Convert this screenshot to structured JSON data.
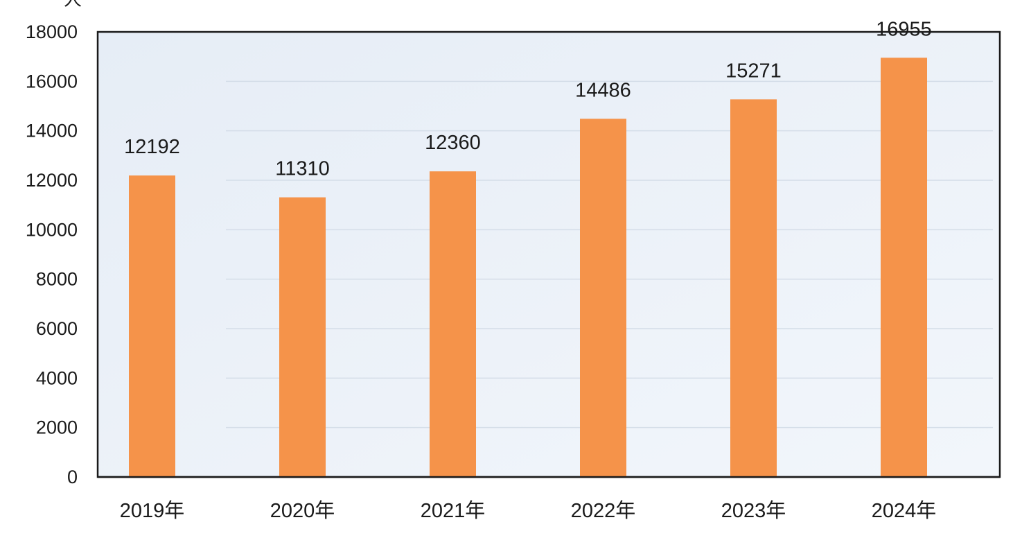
{
  "chart_data": {
    "type": "bar",
    "title": "",
    "unit_label": "人",
    "xlabel": "",
    "ylabel": "",
    "categories": [
      "2019年",
      "2020年",
      "2021年",
      "2022年",
      "2023年",
      "2024年"
    ],
    "values": [
      12192,
      11310,
      12360,
      14486,
      15271,
      16955
    ],
    "data_labels": [
      "12192",
      "11310",
      "12360",
      "14486",
      "15271",
      "16955"
    ],
    "ylim": [
      0,
      18000
    ],
    "yticks": [
      0,
      2000,
      4000,
      6000,
      8000,
      10000,
      12000,
      14000,
      16000,
      18000
    ],
    "ytick_labels": [
      "0",
      "2000",
      "4000",
      "6000",
      "8000",
      "10000",
      "12000",
      "14000",
      "16000",
      "18000"
    ],
    "grid": true,
    "legend": "none",
    "bar_color": "#f5934a",
    "plot_background": "#eaf0f8"
  }
}
